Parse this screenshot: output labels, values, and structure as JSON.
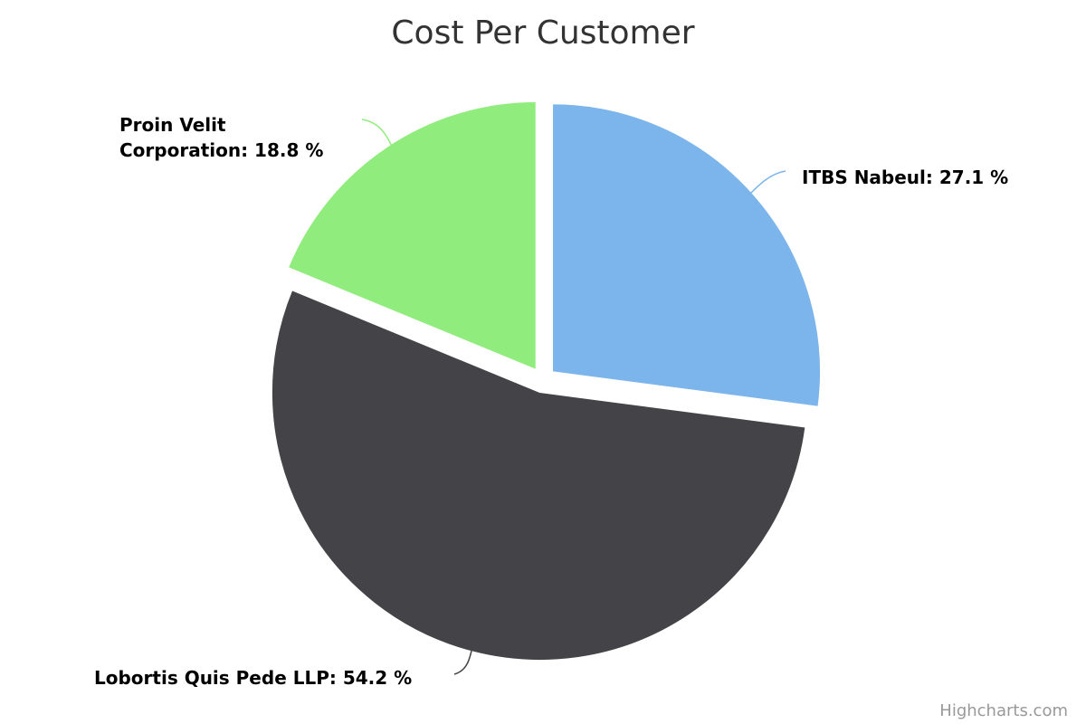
{
  "chart_data": {
    "type": "pie",
    "title": "Cost Per Customer",
    "value_suffix": " %",
    "slices": [
      {
        "name": "ITBS Nabeul",
        "value": 27.1,
        "color": "#7cb5ec",
        "label_text": "ITBS Nabeul: 27.1 %",
        "exploded": false
      },
      {
        "name": "Lobortis Quis Pede LLP",
        "value": 54.2,
        "color": "#434348",
        "label_text": "Lobortis Quis Pede LLP: 54.2 %",
        "exploded": false
      },
      {
        "name": "Proin Velit Corporation",
        "value": 18.8,
        "color": "#90ed7d",
        "label_lines": [
          "Proin Velit",
          "Corporation: 18.8 %"
        ],
        "exploded": false
      }
    ],
    "slice_order": "clockwise from top",
    "legend": "none"
  },
  "credits": "Highcharts.com"
}
